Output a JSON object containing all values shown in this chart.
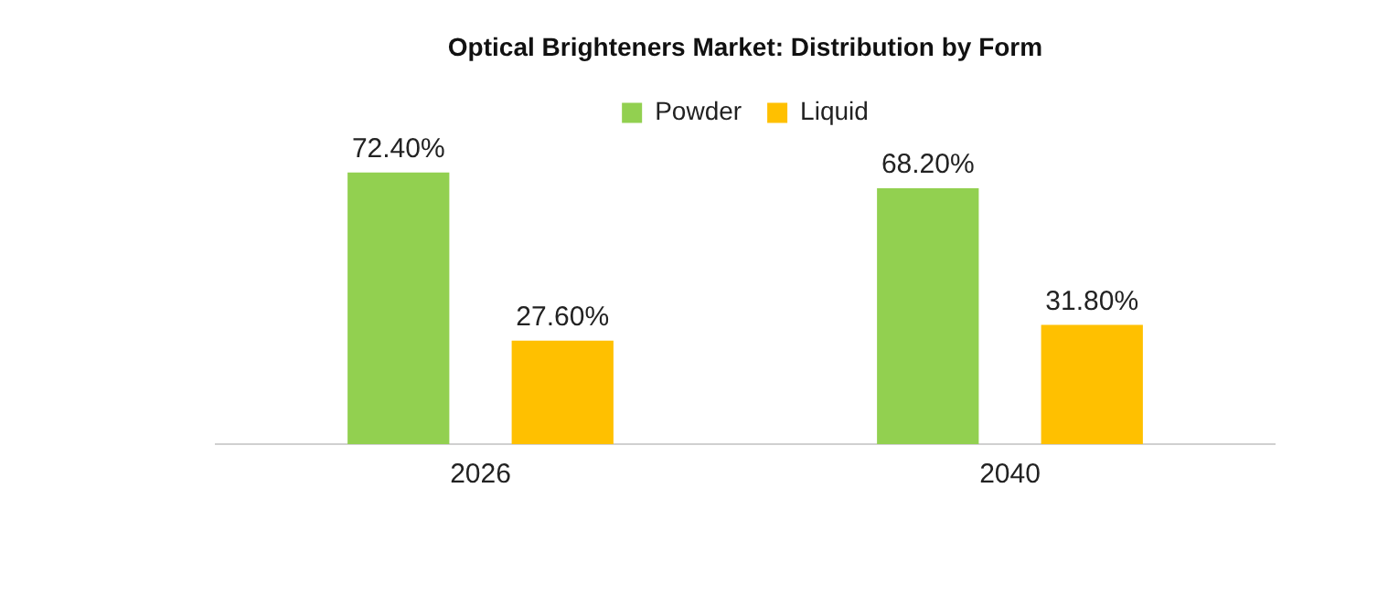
{
  "chart_data": {
    "type": "bar",
    "title": "Optical Brighteners Market: Distribution by Form",
    "categories": [
      "2026",
      "2040"
    ],
    "series": [
      {
        "name": "Powder",
        "color": "#92d050",
        "values": [
          72.4,
          68.2
        ],
        "value_labels": [
          "72.40%",
          "68.20%"
        ]
      },
      {
        "name": "Liquid",
        "color": "#ffc000",
        "values": [
          27.6,
          31.8
        ],
        "value_labels": [
          "27.60%",
          "31.80%"
        ]
      }
    ],
    "legend": "top",
    "grid": false
  }
}
